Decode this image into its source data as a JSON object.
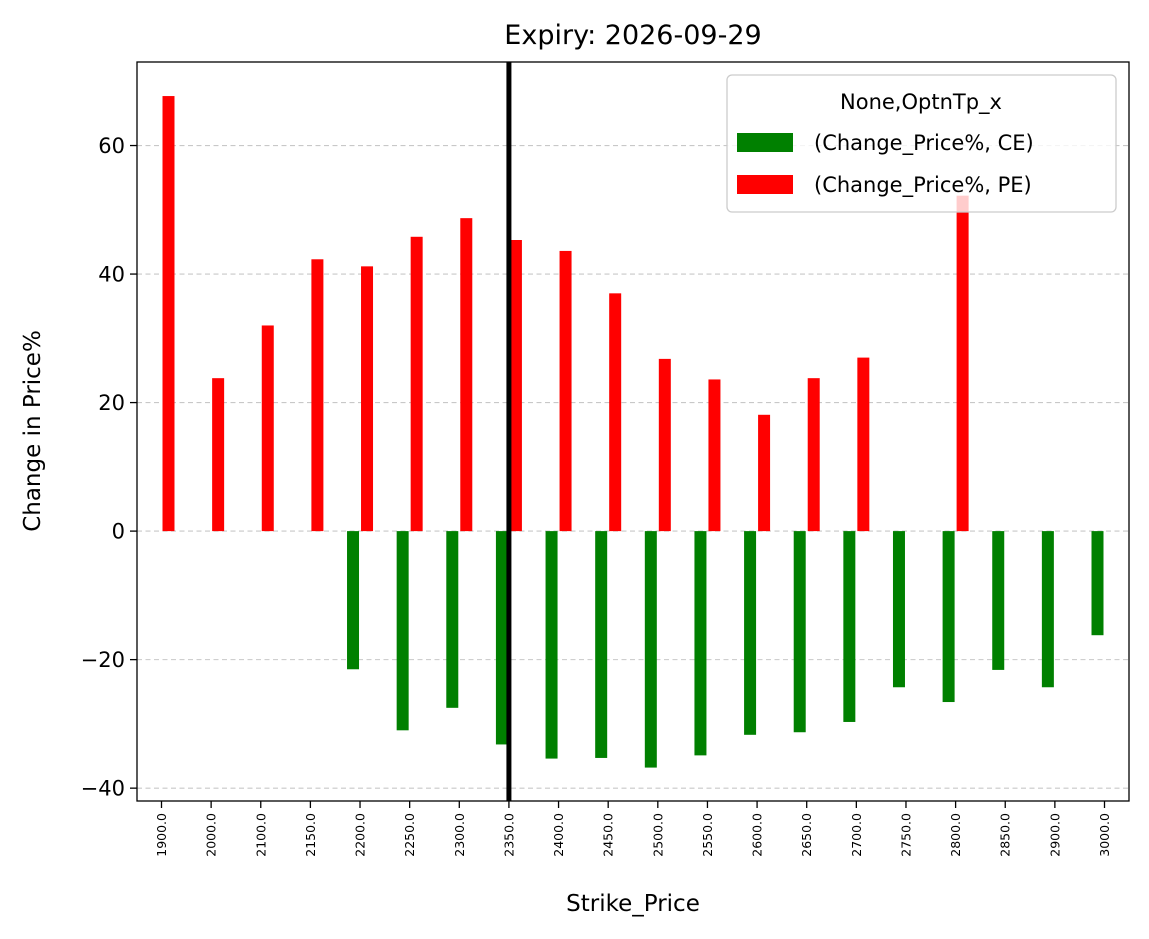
{
  "chart_data": {
    "type": "bar",
    "title": "Expiry: 2026-09-29",
    "xlabel": "Strike_Price",
    "ylabel": "Change in Price%",
    "categories": [
      "1900.0",
      "2000.0",
      "2100.0",
      "2150.0",
      "2200.0",
      "2250.0",
      "2300.0",
      "2350.0",
      "2400.0",
      "2450.0",
      "2500.0",
      "2550.0",
      "2600.0",
      "2650.0",
      "2700.0",
      "2750.0",
      "2800.0",
      "2850.0",
      "2900.0",
      "3000.0"
    ],
    "series": [
      {
        "name": "(Change_Price%, CE)",
        "color": "#008000",
        "values": [
          null,
          null,
          null,
          null,
          -21.5,
          -31,
          -27.5,
          -33.2,
          -35.4,
          -35.3,
          -36.8,
          -34.9,
          -31.7,
          -31.3,
          -29.7,
          -24.3,
          -26.6,
          -21.6,
          -24.3,
          -16.2
        ]
      },
      {
        "name": "(Change_Price%, PE)",
        "color": "#ff0000",
        "values": [
          67.7,
          23.8,
          32,
          42.3,
          41.2,
          45.8,
          48.7,
          45.3,
          43.6,
          37,
          26.8,
          23.6,
          18.1,
          23.8,
          27,
          null,
          52.2,
          null,
          null,
          null
        ]
      }
    ],
    "ylim": [
      -42,
      73
    ],
    "yticks": [
      -40,
      -20,
      0,
      20,
      40,
      60
    ],
    "grid": "y dashed",
    "legend_title": "None,OptnTp_x",
    "legend_position": "top-right",
    "vline": {
      "category": "2350.0",
      "color": "#000000"
    }
  }
}
